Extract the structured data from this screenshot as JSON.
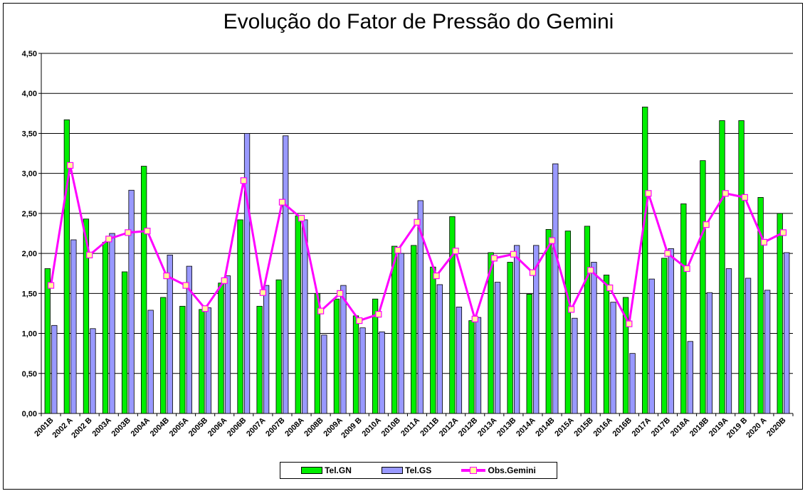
{
  "chart_data": {
    "type": "bar",
    "title": "Evolução do Fator de Pressão do Gemini",
    "xlabel": "",
    "ylabel": "",
    "ylim": [
      0,
      4.5
    ],
    "yticks": [
      "0,00",
      "0,50",
      "1,00",
      "1,50",
      "2,00",
      "2,50",
      "3,00",
      "3,50",
      "4,00",
      "4,50"
    ],
    "grid": "horizontal",
    "legend_position": "bottom",
    "categories": [
      "2001B",
      "2002 A",
      "2002 B",
      "2003A",
      "2003B",
      "2004A",
      "2004B",
      "2005A",
      "2005B",
      "2006A",
      "2006B",
      "2007A",
      "2007B",
      "2008A",
      "2008B",
      "2009A",
      "2009 B",
      "2010A",
      "2010B",
      "2011A",
      "2011B",
      "2012A",
      "2012B",
      "2013A",
      "2013B",
      "2014A",
      "2014B",
      "2015A",
      "2015B",
      "2016A",
      "2016B",
      "2017A",
      "2017B",
      "2018A",
      "2018B",
      "2019A",
      "2019 B",
      "2020 A",
      "2020B"
    ],
    "series": [
      {
        "name": "Tel.GN",
        "type": "bar",
        "color": "#00ee00",
        "values": [
          1.81,
          3.67,
          2.43,
          2.14,
          1.77,
          3.09,
          1.45,
          1.34,
          1.3,
          1.63,
          2.42,
          1.34,
          1.67,
          2.47,
          1.5,
          1.43,
          1.22,
          1.43,
          2.09,
          2.1,
          1.83,
          2.46,
          1.16,
          2.01,
          1.89,
          1.49,
          2.3,
          2.28,
          2.34,
          1.73,
          1.45,
          3.83,
          1.94,
          2.62,
          3.16,
          3.66,
          3.66,
          2.7,
          2.5
        ]
      },
      {
        "name": "Tel.GS",
        "type": "bar",
        "color": "#9999ff",
        "values": [
          1.1,
          2.17,
          1.06,
          2.25,
          2.79,
          1.29,
          1.98,
          1.84,
          1.32,
          1.72,
          3.5,
          1.6,
          3.47,
          2.42,
          0.98,
          1.6,
          1.07,
          1.02,
          2.0,
          2.66,
          1.61,
          1.33,
          1.2,
          1.64,
          2.1,
          2.1,
          3.12,
          1.19,
          1.89,
          1.39,
          0.75,
          1.68,
          2.06,
          0.9,
          1.51,
          1.81,
          1.69,
          1.54,
          2.01
        ]
      },
      {
        "name": "Obs.Gemini",
        "type": "line",
        "color": "#ff00ff",
        "marker_color": "#ffff99",
        "values": [
          1.6,
          3.1,
          1.98,
          2.18,
          2.26,
          2.28,
          1.72,
          1.6,
          1.31,
          1.66,
          2.91,
          1.51,
          2.64,
          2.44,
          1.28,
          1.5,
          1.16,
          1.24,
          2.04,
          2.39,
          1.72,
          2.03,
          1.18,
          1.94,
          1.99,
          1.76,
          2.16,
          1.3,
          1.79,
          1.57,
          1.12,
          2.75,
          2.0,
          1.81,
          2.36,
          2.75,
          2.7,
          2.14,
          2.26
        ]
      }
    ]
  }
}
